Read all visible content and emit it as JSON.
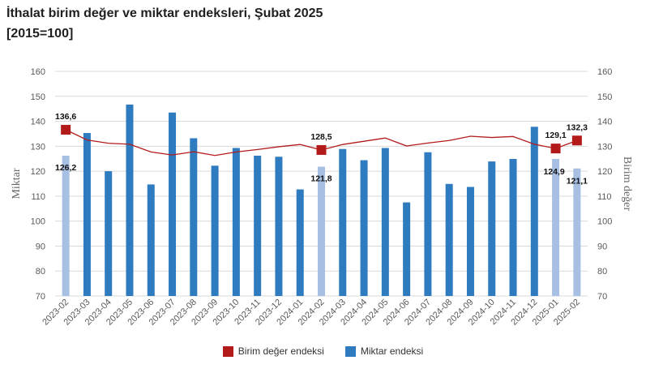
{
  "title": "İthalat birim değer ve miktar endeksleri, Şubat 2025",
  "subtitle": "[2015=100]",
  "legend": {
    "unit_value_label": "Birim değer endeksi",
    "quantity_label": "Miktar endeksi"
  },
  "colors": {
    "unit_value": "#b31b1b",
    "quantity": "#2e7bbf",
    "quantity_highlight": "#a6bfe3",
    "grid": "#d9d9d9",
    "axis_text": "#595959"
  },
  "chart_data": {
    "type": "bar",
    "title": "İthalat birim değer ve miktar endeksleri, Şubat 2025",
    "subtitle": "[2015=100]",
    "ylabel_left": "Miktar",
    "ylabel_right": "Birim değer",
    "ylim": [
      70,
      160
    ],
    "yticks": [
      70,
      80,
      90,
      100,
      110,
      120,
      130,
      140,
      150,
      160
    ],
    "grid": true,
    "legend_position": "bottom-center",
    "categories": [
      "2023-02",
      "2023-03",
      "2023-04",
      "2023-05",
      "2023-06",
      "2023-07",
      "2023-08",
      "2023-09",
      "2023-10",
      "2023-11",
      "2023-12",
      "2024-01",
      "2024-02",
      "2024-03",
      "2024-04",
      "2024-05",
      "2024-06",
      "2024-07",
      "2024-08",
      "2024-09",
      "2024-10",
      "2024-11",
      "2024-12",
      "2025-01",
      "2025-02"
    ],
    "series": [
      {
        "name": "Miktar endeksi",
        "type": "bar",
        "axis": "left",
        "values": [
          126.2,
          135.3,
          120.0,
          146.7,
          114.7,
          143.5,
          133.2,
          122.2,
          129.3,
          126.2,
          125.8,
          112.7,
          121.8,
          128.9,
          124.4,
          129.3,
          107.5,
          127.6,
          114.9,
          113.7,
          123.9,
          124.9,
          137.8,
          124.9,
          121.1
        ],
        "highlight_categories": [
          "2023-02",
          "2024-02",
          "2025-01",
          "2025-02"
        ]
      },
      {
        "name": "Birim değer endeksi",
        "type": "line",
        "axis": "right",
        "values": [
          136.6,
          132.5,
          131.2,
          130.8,
          127.7,
          126.5,
          127.8,
          126.3,
          127.7,
          128.7,
          129.8,
          130.7,
          128.5,
          130.7,
          132.0,
          133.3,
          130.1,
          131.3,
          132.3,
          134.0,
          133.5,
          133.9,
          130.8,
          129.1,
          132.3
        ],
        "marker_categories": [
          "2023-02",
          "2024-02",
          "2025-01",
          "2025-02"
        ]
      }
    ],
    "data_labels": [
      {
        "category": "2023-02",
        "series": "Birim değer endeksi",
        "text": "136,6"
      },
      {
        "category": "2023-02",
        "series": "Miktar endeksi",
        "text": "126,2"
      },
      {
        "category": "2024-02",
        "series": "Birim değer endeksi",
        "text": "128,5"
      },
      {
        "category": "2024-02",
        "series": "Miktar endeksi",
        "text": "121,8"
      },
      {
        "category": "2025-01",
        "series": "Birim değer endeksi",
        "text": "129,1"
      },
      {
        "category": "2025-01",
        "series": "Miktar endeksi",
        "text": "124,9"
      },
      {
        "category": "2025-02",
        "series": "Birim değer endeksi",
        "text": "132,3"
      },
      {
        "category": "2025-02",
        "series": "Miktar endeksi",
        "text": "121,1"
      }
    ]
  }
}
